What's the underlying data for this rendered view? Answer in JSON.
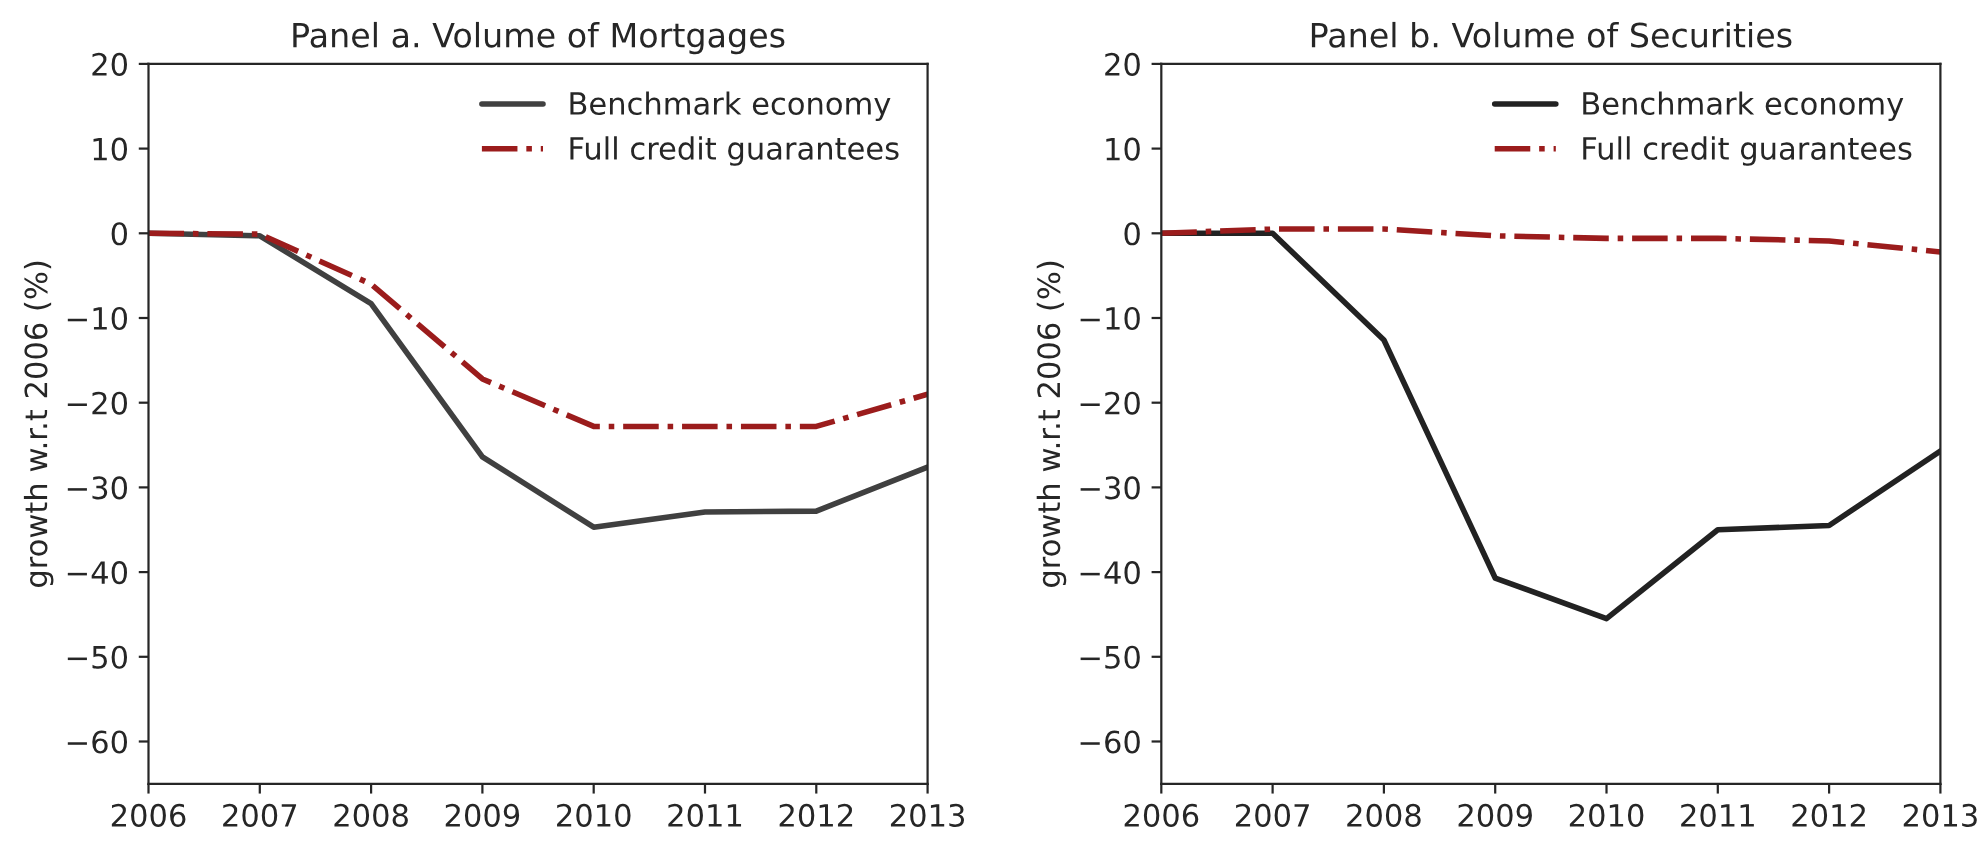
{
  "chart_data": [
    {
      "type": "line",
      "title": "Panel a. Volume of Mortgages",
      "ylabel": "growth w.r.t 2006 (%)",
      "x": [
        2006,
        2007,
        2008,
        2009,
        2010,
        2011,
        2012,
        2013
      ],
      "xlim": [
        2006,
        2013
      ],
      "xticks": [
        2006,
        2007,
        2008,
        2009,
        2010,
        2011,
        2012,
        2013
      ],
      "ylim": [
        -65,
        20
      ],
      "yticks": [
        -60,
        -50,
        -40,
        -30,
        -20,
        -10,
        0,
        10,
        20
      ],
      "grid": false,
      "legend": "top right",
      "series": [
        {
          "name": "Benchmark economy",
          "color": "#404040",
          "line_style": "solid",
          "values": [
            0,
            -0.3,
            -8.3,
            -26.4,
            -34.7,
            -32.9,
            -32.8,
            -27.6
          ]
        },
        {
          "name": "Full credit guarantees",
          "color": "#9b1c1c",
          "line_style": "dashdot",
          "values": [
            0,
            -0.1,
            -6,
            -17.2,
            -22.8,
            -22.8,
            -22.8,
            -19
          ]
        }
      ]
    },
    {
      "type": "line",
      "title": "Panel b. Volume of Securities",
      "ylabel": "growth w.r.t 2006 (%)",
      "x": [
        2006,
        2007,
        2008,
        2009,
        2010,
        2011,
        2012,
        2013
      ],
      "xlim": [
        2006,
        2013
      ],
      "xticks": [
        2006,
        2007,
        2008,
        2009,
        2010,
        2011,
        2012,
        2013
      ],
      "ylim": [
        -65,
        20
      ],
      "yticks": [
        -60,
        -50,
        -40,
        -30,
        -20,
        -10,
        0,
        10,
        20
      ],
      "grid": false,
      "legend": "top right",
      "series": [
        {
          "name": "Benchmark economy",
          "color": "#222222",
          "line_style": "solid",
          "values": [
            0,
            0,
            -12.6,
            -40.7,
            -45.5,
            -35,
            -34.5,
            -25.7
          ]
        },
        {
          "name": "Full credit guarantees",
          "color": "#9b1c1c",
          "line_style": "dashdot",
          "values": [
            0,
            0.5,
            0.5,
            -0.3,
            -0.6,
            -0.6,
            -0.9,
            -2.2
          ]
        }
      ]
    }
  ]
}
